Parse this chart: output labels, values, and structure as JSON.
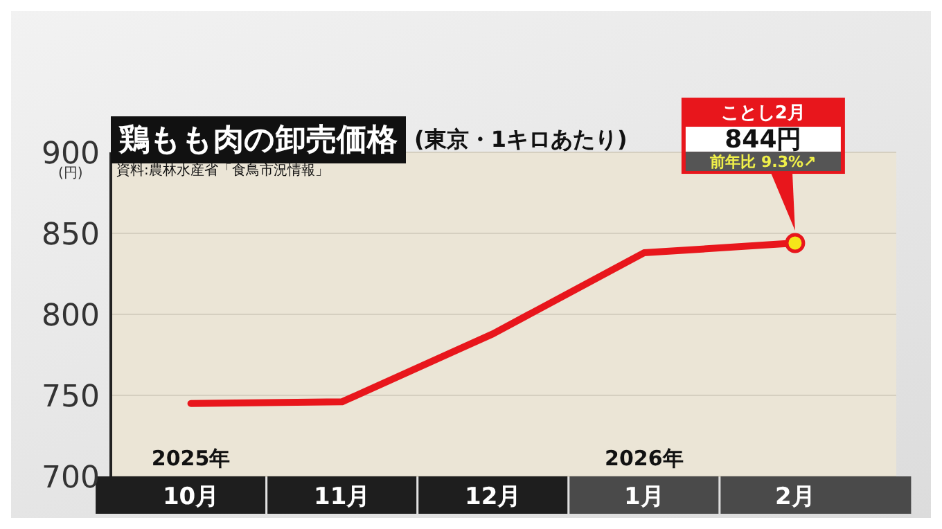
{
  "chart_data": {
    "type": "line",
    "title": "鶏もも肉の卸売価格",
    "subtitle": "(東京・1キロあたり)",
    "ylabel": "(円)",
    "categories": [
      "10月",
      "11月",
      "12月",
      "1月",
      "2月"
    ],
    "series": [
      {
        "color": "#e8161c",
        "values": [
          745,
          746,
          788,
          838,
          844
        ]
      }
    ],
    "ylim": [
      700,
      900
    ],
    "yticks": [
      700,
      750,
      800,
      850,
      900
    ],
    "grid": "y",
    "marker": "none",
    "line_style": "solid",
    "annotations": [
      "資料:農林水産省「食鳥市況情報」",
      "2025年",
      "2026年",
      "ことし2月",
      "844円",
      "前年比 9.3%↗"
    ]
  }
}
